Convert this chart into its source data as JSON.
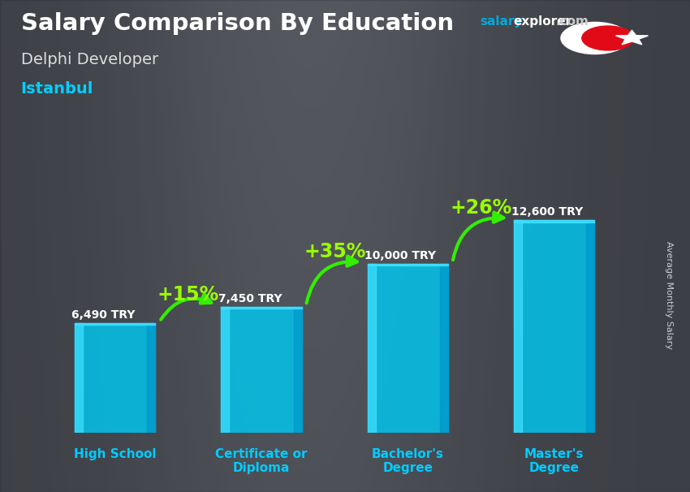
{
  "title": "Salary Comparison By Education",
  "subtitle1": "Delphi Developer",
  "subtitle2": "Istanbul",
  "ylabel": "Average Monthly Salary",
  "categories": [
    "High School",
    "Certificate or\nDiploma",
    "Bachelor's\nDegree",
    "Master's\nDegree"
  ],
  "values": [
    6490,
    7450,
    10000,
    12600
  ],
  "value_labels": [
    "6,490 TRY",
    "7,450 TRY",
    "10,000 TRY",
    "12,600 TRY"
  ],
  "pct_labels": [
    "+15%",
    "+35%",
    "+26%"
  ],
  "bar_color_main": "#00C8F0",
  "bar_color_light": "#40DFFF",
  "bar_color_side": "#0099CC",
  "bar_alpha": 0.82,
  "arrow_color": "#33EE00",
  "pct_color": "#99FF00",
  "title_color": "#FFFFFF",
  "subtitle1_color": "#DDDDDD",
  "subtitle2_color": "#00CFFF",
  "value_label_color": "#FFFFFF",
  "xtick_color": "#00CCFF",
  "bg_color_top": "#6a6a6a",
  "bg_color_bottom": "#404040",
  "flag_red": "#E30A17",
  "salary_color": "#00AADD",
  "explorer_color": "#FFFFFF",
  "com_color": "#CCCCCC",
  "ylim_max": 16000,
  "bar_width": 0.55
}
